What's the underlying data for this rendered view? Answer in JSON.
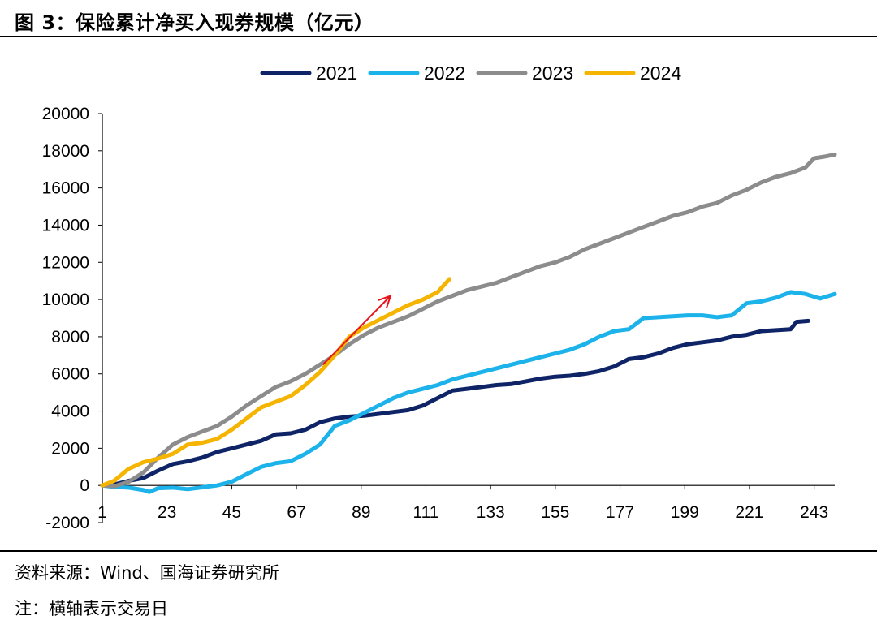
{
  "figure": {
    "title": "图 3：保险累计净买入现券规模（亿元）",
    "source": "资料来源：Wind、国海证券研究所",
    "note": "注：横轴表示交易日"
  },
  "chart_data": {
    "type": "line",
    "title": "",
    "xlabel": "",
    "ylabel": "",
    "ylim": [
      -2000,
      20000
    ],
    "y_ticks": [
      -2000,
      0,
      2000,
      4000,
      6000,
      8000,
      10000,
      12000,
      14000,
      16000,
      18000,
      20000
    ],
    "xlim": [
      1,
      250
    ],
    "x_ticks": [
      1,
      23,
      45,
      67,
      89,
      111,
      133,
      155,
      177,
      199,
      221,
      243
    ],
    "grid": false,
    "legend_position": "top-center",
    "series": [
      {
        "name": "2021",
        "color": "#0e2466",
        "points": [
          [
            1,
            0
          ],
          [
            5,
            50
          ],
          [
            10,
            250
          ],
          [
            15,
            400
          ],
          [
            20,
            800
          ],
          [
            25,
            1150
          ],
          [
            30,
            1300
          ],
          [
            35,
            1500
          ],
          [
            40,
            1800
          ],
          [
            45,
            2000
          ],
          [
            50,
            2200
          ],
          [
            55,
            2400
          ],
          [
            60,
            2750
          ],
          [
            65,
            2800
          ],
          [
            70,
            3000
          ],
          [
            75,
            3400
          ],
          [
            80,
            3600
          ],
          [
            85,
            3700
          ],
          [
            90,
            3750
          ],
          [
            95,
            3850
          ],
          [
            100,
            3950
          ],
          [
            105,
            4050
          ],
          [
            110,
            4300
          ],
          [
            115,
            4700
          ],
          [
            120,
            5100
          ],
          [
            125,
            5200
          ],
          [
            130,
            5300
          ],
          [
            135,
            5400
          ],
          [
            140,
            5450
          ],
          [
            145,
            5600
          ],
          [
            150,
            5750
          ],
          [
            155,
            5850
          ],
          [
            160,
            5900
          ],
          [
            165,
            6000
          ],
          [
            170,
            6150
          ],
          [
            175,
            6400
          ],
          [
            180,
            6800
          ],
          [
            185,
            6900
          ],
          [
            190,
            7100
          ],
          [
            195,
            7400
          ],
          [
            200,
            7600
          ],
          [
            205,
            7700
          ],
          [
            210,
            7800
          ],
          [
            215,
            8000
          ],
          [
            220,
            8100
          ],
          [
            225,
            8300
          ],
          [
            230,
            8350
          ],
          [
            235,
            8400
          ],
          [
            237,
            8800
          ],
          [
            241,
            8850
          ]
        ]
      },
      {
        "name": "2022",
        "color": "#1cb2ea",
        "points": [
          [
            1,
            0
          ],
          [
            5,
            -80
          ],
          [
            10,
            -120
          ],
          [
            15,
            -250
          ],
          [
            17,
            -350
          ],
          [
            20,
            -150
          ],
          [
            25,
            -120
          ],
          [
            30,
            -200
          ],
          [
            35,
            -100
          ],
          [
            40,
            0
          ],
          [
            45,
            200
          ],
          [
            50,
            600
          ],
          [
            55,
            1000
          ],
          [
            60,
            1200
          ],
          [
            65,
            1300
          ],
          [
            70,
            1700
          ],
          [
            75,
            2200
          ],
          [
            80,
            3200
          ],
          [
            85,
            3500
          ],
          [
            90,
            3900
          ],
          [
            95,
            4300
          ],
          [
            100,
            4700
          ],
          [
            105,
            5000
          ],
          [
            110,
            5200
          ],
          [
            115,
            5400
          ],
          [
            120,
            5700
          ],
          [
            125,
            5900
          ],
          [
            130,
            6100
          ],
          [
            135,
            6300
          ],
          [
            140,
            6500
          ],
          [
            145,
            6700
          ],
          [
            150,
            6900
          ],
          [
            155,
            7100
          ],
          [
            160,
            7300
          ],
          [
            165,
            7600
          ],
          [
            170,
            8000
          ],
          [
            175,
            8300
          ],
          [
            180,
            8400
          ],
          [
            185,
            9000
          ],
          [
            190,
            9050
          ],
          [
            195,
            9100
          ],
          [
            200,
            9150
          ],
          [
            205,
            9150
          ],
          [
            210,
            9050
          ],
          [
            215,
            9150
          ],
          [
            220,
            9800
          ],
          [
            225,
            9900
          ],
          [
            230,
            10100
          ],
          [
            235,
            10400
          ],
          [
            240,
            10300
          ],
          [
            245,
            10050
          ],
          [
            250,
            10300
          ]
        ]
      },
      {
        "name": "2023",
        "color": "#8c8c8c",
        "points": [
          [
            1,
            0
          ],
          [
            5,
            -50
          ],
          [
            10,
            200
          ],
          [
            15,
            700
          ],
          [
            20,
            1500
          ],
          [
            25,
            2200
          ],
          [
            30,
            2600
          ],
          [
            35,
            2900
          ],
          [
            40,
            3200
          ],
          [
            45,
            3700
          ],
          [
            50,
            4300
          ],
          [
            55,
            4800
          ],
          [
            60,
            5300
          ],
          [
            65,
            5600
          ],
          [
            70,
            6000
          ],
          [
            75,
            6500
          ],
          [
            80,
            7000
          ],
          [
            85,
            7600
          ],
          [
            90,
            8100
          ],
          [
            95,
            8500
          ],
          [
            100,
            8800
          ],
          [
            105,
            9100
          ],
          [
            110,
            9500
          ],
          [
            115,
            9900
          ],
          [
            120,
            10200
          ],
          [
            125,
            10500
          ],
          [
            130,
            10700
          ],
          [
            135,
            10900
          ],
          [
            140,
            11200
          ],
          [
            145,
            11500
          ],
          [
            150,
            11800
          ],
          [
            155,
            12000
          ],
          [
            160,
            12300
          ],
          [
            165,
            12700
          ],
          [
            170,
            13000
          ],
          [
            175,
            13300
          ],
          [
            180,
            13600
          ],
          [
            185,
            13900
          ],
          [
            190,
            14200
          ],
          [
            195,
            14500
          ],
          [
            200,
            14700
          ],
          [
            205,
            15000
          ],
          [
            210,
            15200
          ],
          [
            215,
            15600
          ],
          [
            220,
            15900
          ],
          [
            225,
            16300
          ],
          [
            230,
            16600
          ],
          [
            235,
            16800
          ],
          [
            240,
            17100
          ],
          [
            243,
            17600
          ],
          [
            247,
            17700
          ],
          [
            250,
            17800
          ]
        ]
      },
      {
        "name": "2024",
        "color": "#f5b400",
        "points": [
          [
            1,
            0
          ],
          [
            5,
            250
          ],
          [
            10,
            900
          ],
          [
            15,
            1250
          ],
          [
            20,
            1450
          ],
          [
            25,
            1700
          ],
          [
            30,
            2200
          ],
          [
            35,
            2300
          ],
          [
            40,
            2500
          ],
          [
            45,
            3000
          ],
          [
            50,
            3600
          ],
          [
            55,
            4200
          ],
          [
            60,
            4500
          ],
          [
            65,
            4800
          ],
          [
            70,
            5400
          ],
          [
            75,
            6100
          ],
          [
            80,
            7000
          ],
          [
            85,
            8000
          ],
          [
            90,
            8500
          ],
          [
            95,
            8900
          ],
          [
            100,
            9300
          ],
          [
            105,
            9700
          ],
          [
            110,
            10000
          ],
          [
            115,
            10400
          ],
          [
            119,
            11100
          ]
        ]
      }
    ],
    "annotations": [
      {
        "type": "arrow",
        "color": "#e8141c",
        "from": [
          76,
          6500
        ],
        "to": [
          99,
          10200
        ]
      }
    ]
  }
}
